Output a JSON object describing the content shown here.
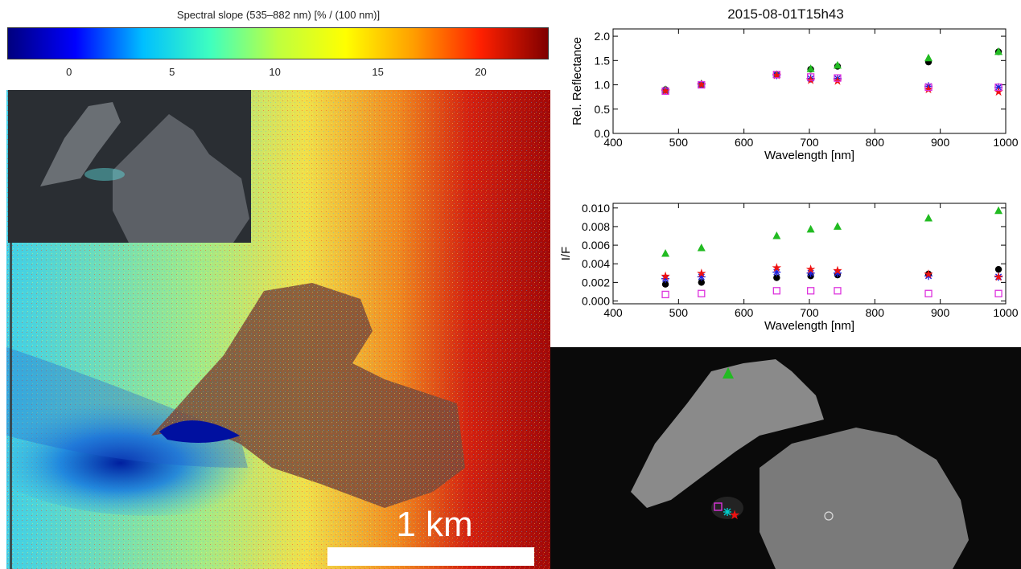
{
  "colorbar": {
    "title": "Spectral slope (535–882 nm) [% / (100 nm)]",
    "range": [
      -3,
      23.3
    ],
    "ticks": [
      "0",
      "5",
      "10",
      "15",
      "20"
    ],
    "colormap": [
      "#00007f",
      "#0000ff",
      "#00bfff",
      "#3fffbf",
      "#bfff3f",
      "#ffff00",
      "#ff9f00",
      "#ff2000",
      "#7f0000"
    ]
  },
  "scalebar": {
    "label": "1 km"
  },
  "colors": {
    "black": "#000000",
    "green": "#22bb22",
    "blue": "#2222dd",
    "red": "#ee1111",
    "magenta": "#dd33dd",
    "cyan": "#00cccc"
  },
  "chart_data": [
    {
      "type": "scatter",
      "title": "2015-08-01T15h43",
      "xlabel": "Wavelength [nm]",
      "ylabel": "Rel. Reflectance",
      "xlim": [
        400,
        1000
      ],
      "ylim": [
        0,
        2.15
      ],
      "xticks": [
        400,
        500,
        600,
        700,
        800,
        900,
        1000
      ],
      "yticks": [
        "0.0",
        "0.5",
        "1.0",
        "1.5",
        "2.0"
      ],
      "x": [
        480,
        535,
        650,
        702,
        743,
        882,
        989
      ],
      "series": [
        {
          "marker": "circle",
          "color": "black",
          "values": [
            0.9,
            1.0,
            1.2,
            1.32,
            1.38,
            1.47,
            1.68
          ]
        },
        {
          "marker": "triangle",
          "color": "green",
          "values": [
            0.9,
            1.02,
            1.21,
            1.33,
            1.4,
            1.55,
            1.68
          ]
        },
        {
          "marker": "asterisk",
          "color": "blue",
          "values": [
            0.88,
            1.01,
            1.2,
            1.13,
            1.13,
            0.97,
            0.95
          ]
        },
        {
          "marker": "star",
          "color": "red",
          "values": [
            0.88,
            1.01,
            1.2,
            1.1,
            1.08,
            0.91,
            0.86
          ]
        },
        {
          "marker": "square",
          "color": "magenta",
          "values": [
            0.87,
            1.0,
            1.21,
            1.16,
            1.14,
            0.95,
            0.95
          ]
        }
      ]
    },
    {
      "type": "scatter",
      "xlabel": "Wavelength [nm]",
      "ylabel": "I/F",
      "xlim": [
        400,
        1000
      ],
      "ylim": [
        -0.0003,
        0.0105
      ],
      "xticks": [
        400,
        500,
        600,
        700,
        800,
        900,
        1000
      ],
      "yticks": [
        "0.000",
        "0.002",
        "0.004",
        "0.006",
        "0.008",
        "0.010"
      ],
      "x": [
        480,
        535,
        650,
        702,
        743,
        882,
        989
      ],
      "series": [
        {
          "marker": "circle",
          "color": "black",
          "values": [
            0.0018,
            0.002,
            0.0025,
            0.0027,
            0.0028,
            0.0029,
            0.0034
          ]
        },
        {
          "marker": "triangle",
          "color": "green",
          "values": [
            0.0051,
            0.0057,
            0.007,
            0.0077,
            0.008,
            0.0089,
            0.0097
          ]
        },
        {
          "marker": "asterisk",
          "color": "blue",
          "values": [
            0.0024,
            0.0026,
            0.0031,
            0.003,
            0.003,
            0.0027,
            0.0026
          ]
        },
        {
          "marker": "star",
          "color": "red",
          "values": [
            0.0027,
            0.003,
            0.0036,
            0.0034,
            0.0033,
            0.0029,
            0.0026
          ]
        },
        {
          "marker": "square",
          "color": "magenta",
          "values": [
            0.0007,
            0.0008,
            0.0011,
            0.0011,
            0.0011,
            0.0008,
            0.0008
          ]
        }
      ]
    }
  ]
}
